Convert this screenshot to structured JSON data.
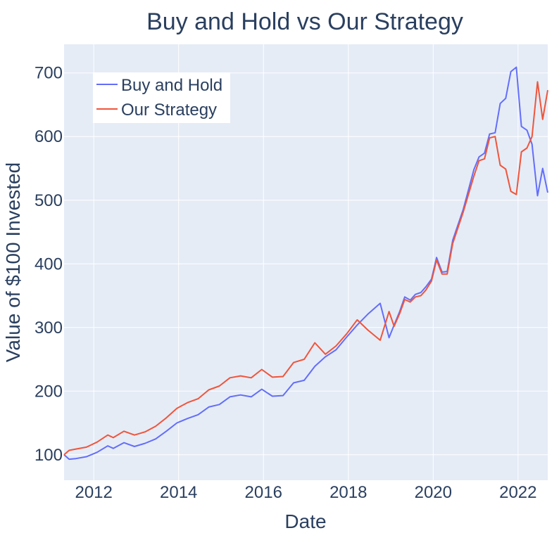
{
  "chart_data": {
    "type": "line",
    "title": "Buy and Hold vs Our Strategy",
    "xlabel": "Date",
    "ylabel": "Value of $100 Invested",
    "xlim": [
      2011.3,
      2022.7
    ],
    "ylim": [
      60,
      745
    ],
    "xticks": [
      2012,
      2014,
      2016,
      2018,
      2020,
      2022
    ],
    "yticks": [
      100,
      200,
      300,
      400,
      500,
      600,
      700
    ],
    "legend_position": "top-left",
    "colors": {
      "plot_bg": "#e5ecf6",
      "grid": "#ffffff",
      "text": "#2a3f5f"
    },
    "series": [
      {
        "name": "Buy and Hold",
        "color": "#636efa",
        "x": [
          2011.3,
          2011.42,
          2011.58,
          2011.83,
          2012.08,
          2012.33,
          2012.46,
          2012.71,
          2012.96,
          2013.21,
          2013.46,
          2013.71,
          2013.96,
          2014.21,
          2014.46,
          2014.71,
          2014.96,
          2015.21,
          2015.46,
          2015.71,
          2015.96,
          2016.21,
          2016.46,
          2016.71,
          2016.96,
          2017.21,
          2017.46,
          2017.71,
          2017.96,
          2018.21,
          2018.46,
          2018.75,
          2018.96,
          2019.08,
          2019.21,
          2019.33,
          2019.46,
          2019.58,
          2019.71,
          2019.83,
          2019.96,
          2020.08,
          2020.21,
          2020.33,
          2020.46,
          2020.71,
          2020.96,
          2021.08,
          2021.21,
          2021.33,
          2021.46,
          2021.58,
          2021.71,
          2021.83,
          2021.96,
          2022.08,
          2022.21,
          2022.33,
          2022.46,
          2022.58,
          2022.7
        ],
        "y": [
          100,
          93,
          94,
          97,
          104,
          114,
          110,
          119,
          113,
          118,
          125,
          137,
          150,
          157,
          163,
          175,
          179,
          191,
          194,
          191,
          203,
          192,
          193,
          213,
          217,
          239,
          254,
          265,
          285,
          304,
          321,
          338,
          284,
          304,
          325,
          348,
          343,
          352,
          355,
          364,
          376,
          410,
          387,
          388,
          437,
          486,
          548,
          568,
          574,
          604,
          606,
          652,
          660,
          702,
          709,
          616,
          610,
          588,
          507,
          550,
          512
        ]
      },
      {
        "name": "Our Strategy",
        "color": "#ef553b",
        "x": [
          2011.3,
          2011.42,
          2011.58,
          2011.83,
          2012.08,
          2012.33,
          2012.46,
          2012.71,
          2012.96,
          2013.21,
          2013.46,
          2013.71,
          2013.96,
          2014.21,
          2014.46,
          2014.71,
          2014.96,
          2015.21,
          2015.46,
          2015.71,
          2015.96,
          2016.21,
          2016.46,
          2016.71,
          2016.96,
          2017.21,
          2017.46,
          2017.71,
          2017.96,
          2018.21,
          2018.46,
          2018.75,
          2018.96,
          2019.08,
          2019.21,
          2019.33,
          2019.46,
          2019.58,
          2019.71,
          2019.83,
          2019.96,
          2020.08,
          2020.21,
          2020.33,
          2020.46,
          2020.71,
          2020.96,
          2021.08,
          2021.21,
          2021.33,
          2021.46,
          2021.58,
          2021.71,
          2021.83,
          2021.96,
          2022.08,
          2022.21,
          2022.33,
          2022.46,
          2022.58,
          2022.7
        ],
        "y": [
          100,
          107,
          109,
          112,
          120,
          131,
          127,
          137,
          131,
          136,
          145,
          158,
          173,
          182,
          188,
          202,
          208,
          221,
          224,
          221,
          234,
          222,
          223,
          245,
          250,
          276,
          258,
          271,
          290,
          312,
          296,
          280,
          325,
          302,
          322,
          344,
          340,
          348,
          350,
          359,
          373,
          406,
          384,
          384,
          432,
          482,
          538,
          562,
          565,
          598,
          600,
          555,
          549,
          514,
          509,
          576,
          582,
          600,
          686,
          627,
          673
        ]
      }
    ]
  }
}
